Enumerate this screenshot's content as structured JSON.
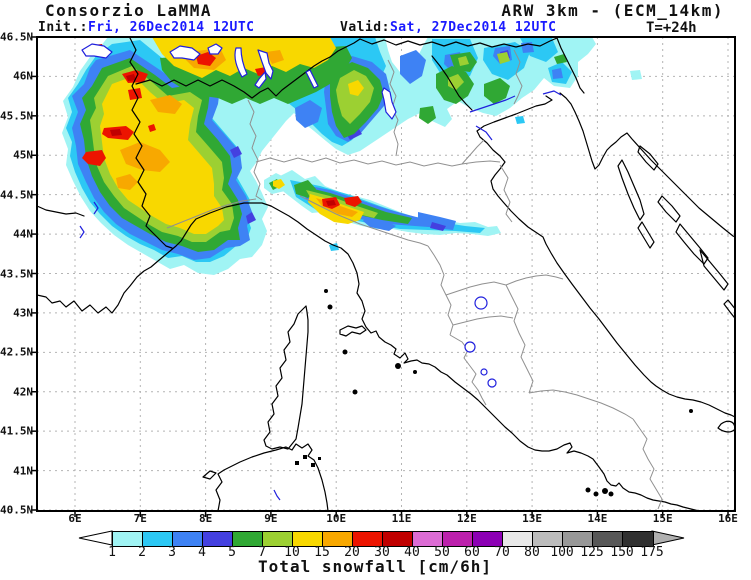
{
  "header": {
    "brand": "Consorzio LaMMA",
    "model": "ARW 3km - (ECM_14km)",
    "init_label": "Init.:",
    "init_value": "Fri, 26Dec2014 12UTC",
    "valid_label": "Valid:",
    "valid_value": "Sat, 27Dec2014 12UTC",
    "lead_time": "T=+24h"
  },
  "map": {
    "lat_labels": [
      "46.5N",
      "46N",
      "45.5N",
      "45N",
      "44.5N",
      "44N",
      "43.5N",
      "43N",
      "42.5N",
      "42N",
      "41.5N",
      "41N",
      "40.5N"
    ],
    "lon_labels": [
      "6E",
      "7E",
      "8E",
      "9E",
      "10E",
      "11E",
      "12E",
      "13E",
      "14E",
      "15E",
      "16E"
    ]
  },
  "scale": {
    "title": "Total snowfall [cm/6h]",
    "values": [
      "1",
      "2",
      "3",
      "4",
      "5",
      "7",
      "10",
      "15",
      "20",
      "30",
      "40",
      "50",
      "60",
      "70",
      "80",
      "100",
      "125",
      "150",
      "175"
    ],
    "colors": [
      "#a0f4f4",
      "#2cc8f4",
      "#3e82f4",
      "#4440e0",
      "#30a834",
      "#9cd032",
      "#f8d800",
      "#f8a800",
      "#ec1400",
      "#c00000",
      "#dc6cd4",
      "#bc20ac",
      "#8c00b4",
      "#e8e8e8",
      "#bcbcbc",
      "#989898",
      "#585858",
      "#303030"
    ],
    "left_arrow_color": "#ffffff",
    "right_arrow_color": "#b0b0b0"
  },
  "colors": {
    "date_blue": "#1a1aff",
    "grid_gray": "#b4b4b4",
    "region_border_gray": "#909090",
    "coast_black": "#000000",
    "water_blue": "#2020dd"
  }
}
